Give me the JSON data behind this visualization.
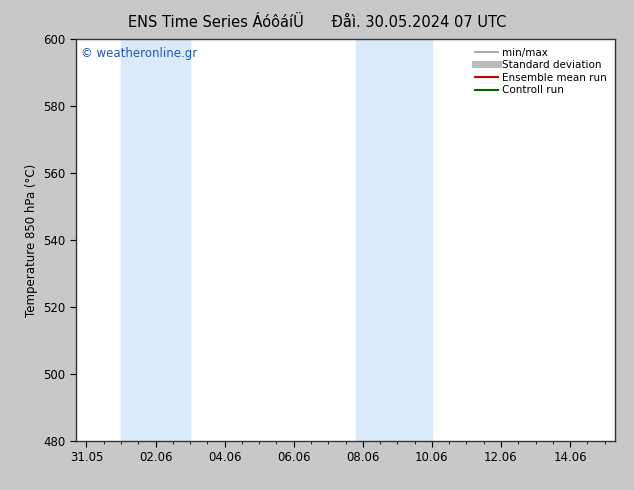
{
  "title_left": "ENS Time Series ÁóôáíÜ",
  "title_right": "Đåì. 30.05.2024 07 UTC",
  "ylabel": "Temperature 850 hPa (°C)",
  "ylim": [
    480,
    600
  ],
  "yticks": [
    480,
    500,
    520,
    540,
    560,
    580,
    600
  ],
  "xtick_labels": [
    "31.05",
    "02.06",
    "04.06",
    "06.06",
    "08.06",
    "10.06",
    "12.06",
    "14.06"
  ],
  "xtick_positions": [
    0,
    2,
    4,
    6,
    8,
    10,
    12,
    14
  ],
  "xlim": [
    -0.3,
    15.3
  ],
  "watermark": "© weatheronline.gr",
  "bg_color": "#c8c8c8",
  "plot_bg_color": "#ffffff",
  "band_color": "#daeaf8",
  "band1_xstart": 1.0,
  "band1_xend": 3.0,
  "band2_xstart": 7.8,
  "band2_xend": 10.0,
  "legend_items": [
    {
      "label": "min/max",
      "color": "#999999",
      "lw": 1.2
    },
    {
      "label": "Standard deviation",
      "color": "#bbbbbb",
      "lw": 5
    },
    {
      "label": "Ensemble mean run",
      "color": "#cc0000",
      "lw": 1.5
    },
    {
      "label": "Controll run",
      "color": "#006600",
      "lw": 1.5
    }
  ],
  "title_fontsize": 10.5,
  "tick_fontsize": 8.5,
  "label_fontsize": 8.5,
  "watermark_color": "#2255bb",
  "spine_color": "#333333"
}
